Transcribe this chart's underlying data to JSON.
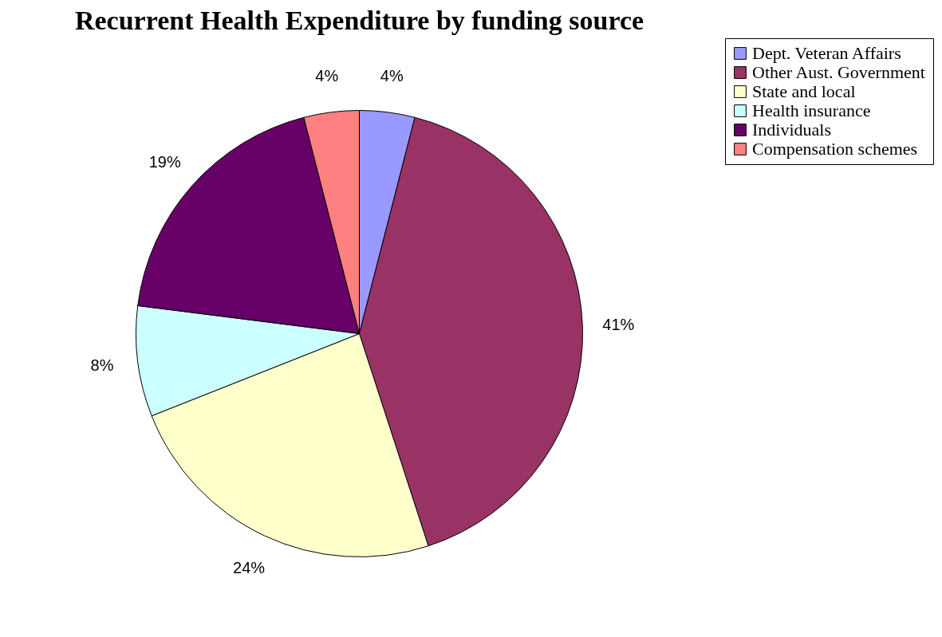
{
  "chart_data": {
    "type": "pie",
    "title": "Recurrent Health Expenditure by funding source",
    "categories": [
      "Dept. Veteran Affairs",
      "Other Aust. Government",
      "State and local",
      "Health insurance",
      "Individuals",
      "Compensation schemes"
    ],
    "values": [
      4,
      41,
      24,
      8,
      19,
      4
    ],
    "value_labels": [
      "4%",
      "41%",
      "24%",
      "8%",
      "19%",
      "4%"
    ],
    "colors": [
      "#9999ff",
      "#993366",
      "#ffffcc",
      "#ccffff",
      "#660066",
      "#ff8080"
    ],
    "legend": "right"
  }
}
